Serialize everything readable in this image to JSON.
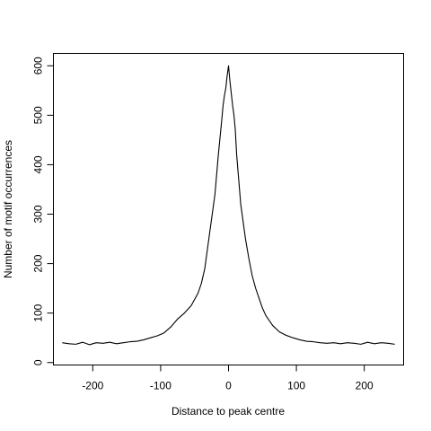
{
  "chart_data": {
    "type": "line",
    "title": "",
    "xlabel": "Distance to peak centre",
    "ylabel": "Number of motif occurrences",
    "xlim": [
      -258,
      258
    ],
    "ylim": [
      -5,
      625
    ],
    "xticks": [
      -200,
      -100,
      0,
      100,
      200
    ],
    "yticks": [
      0,
      100,
      200,
      300,
      400,
      500,
      600
    ],
    "grid": false,
    "series": [
      {
        "name": "",
        "x": [
          -245,
          -235,
          -225,
          -215,
          -205,
          -195,
          -185,
          -175,
          -165,
          -155,
          -145,
          -135,
          -125,
          -115,
          -105,
          -95,
          -85,
          -75,
          -65,
          -55,
          -45,
          -40,
          -35,
          -30,
          -25,
          -20,
          -15,
          -10,
          -8,
          -6,
          -4,
          -2,
          0,
          2,
          4,
          6,
          8,
          10,
          12,
          15,
          18,
          20,
          25,
          30,
          35,
          40,
          45,
          50,
          55,
          65,
          75,
          85,
          95,
          105,
          115,
          125,
          135,
          145,
          155,
          165,
          175,
          185,
          195,
          205,
          215,
          225,
          235,
          245
        ],
        "y": [
          40,
          38,
          37,
          41,
          36,
          40,
          39,
          41,
          38,
          40,
          42,
          43,
          46,
          50,
          54,
          60,
          72,
          88,
          100,
          115,
          140,
          160,
          190,
          240,
          290,
          340,
          420,
          490,
          520,
          540,
          555,
          580,
          600,
          570,
          545,
          520,
          500,
          470,
          420,
          370,
          320,
          300,
          250,
          210,
          175,
          150,
          130,
          110,
          95,
          75,
          62,
          55,
          50,
          46,
          43,
          42,
          40,
          39,
          40,
          38,
          40,
          39,
          37,
          41,
          38,
          40,
          39,
          37
        ]
      }
    ]
  }
}
